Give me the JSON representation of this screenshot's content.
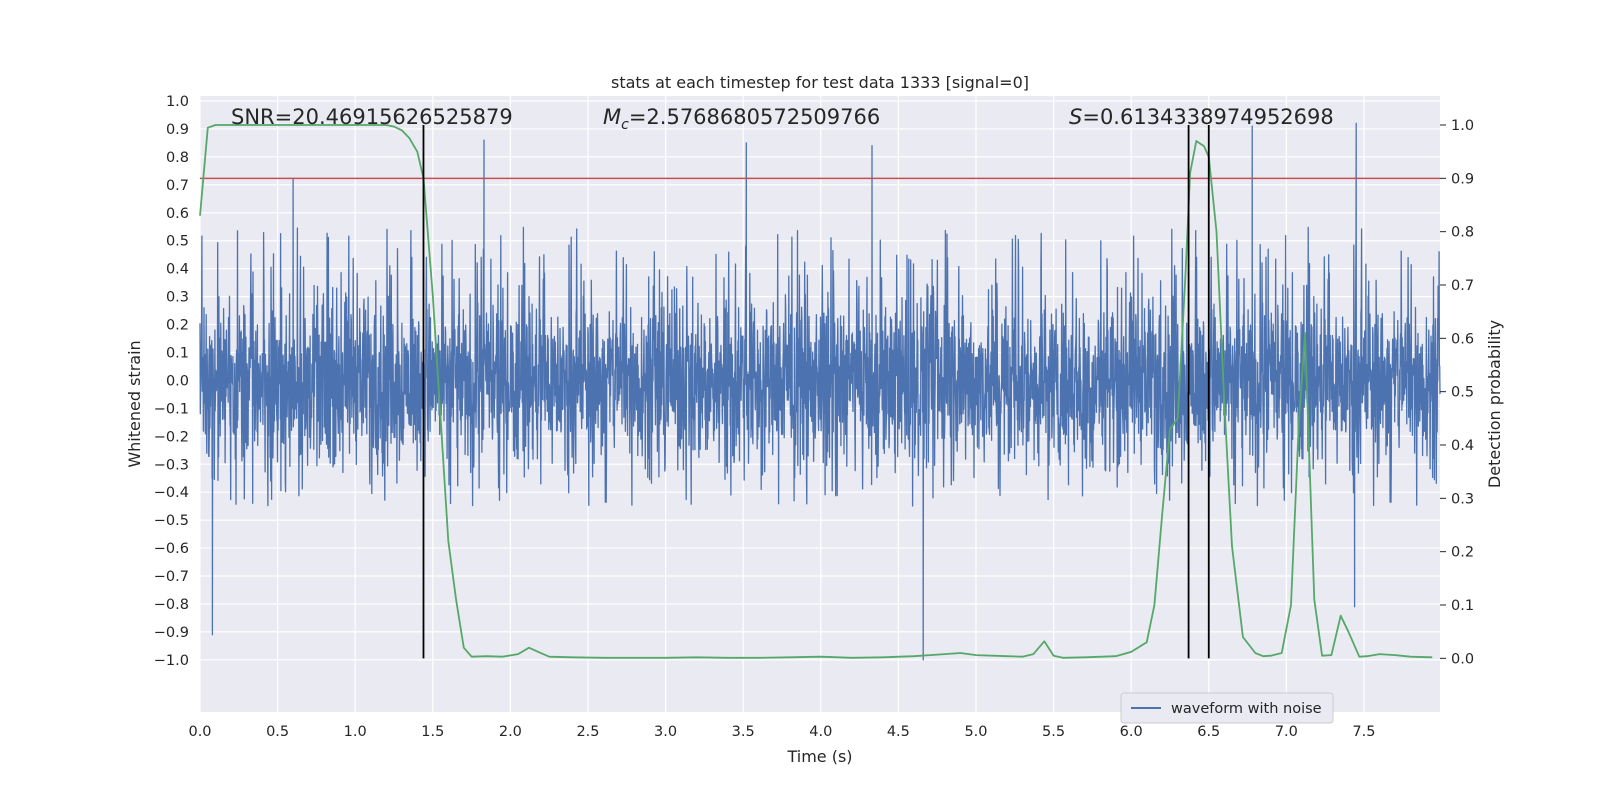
{
  "chart_data": {
    "type": "line",
    "title": "stats at each timestep for test data 1333 [signal=0]",
    "xlabel": "Time (s)",
    "ylabel_left": "Whitened strain",
    "ylabel_right": "Detection probability",
    "xlim": [
      0.0,
      7.99
    ],
    "ylim_left": [
      -1.09,
      1.0
    ],
    "ylim_right": [
      -0.05,
      1.045
    ],
    "x_ticks": [
      0.0,
      0.5,
      1.0,
      1.5,
      2.0,
      2.5,
      3.0,
      3.5,
      4.0,
      4.5,
      5.0,
      5.5,
      6.0,
      6.5,
      7.0,
      7.5
    ],
    "x_tick_labels": [
      "0.0",
      "0.5",
      "1.0",
      "1.5",
      "2.0",
      "2.5",
      "3.0",
      "3.5",
      "4.0",
      "4.5",
      "5.0",
      "5.5",
      "6.0",
      "6.5",
      "7.0",
      "7.5"
    ],
    "y_left_ticks": [
      1.0,
      0.9,
      0.8,
      0.7,
      0.6,
      0.5,
      0.4,
      0.3,
      0.2,
      0.1,
      0.0,
      -0.1,
      -0.2,
      -0.3,
      -0.4,
      -0.5,
      -0.6,
      -0.7,
      -0.8,
      -0.9,
      -1.0
    ],
    "y_left_tick_labels": [
      "1.0",
      "0.9",
      "0.8",
      "0.7",
      "0.6",
      "0.5",
      "0.4",
      "0.3",
      "0.2",
      "0.1",
      "0.0",
      "−0.1",
      "−0.2",
      "−0.3",
      "−0.4",
      "−0.5",
      "−0.6",
      "−0.7",
      "−0.8",
      "−0.9",
      "−1.0"
    ],
    "y_right_ticks": [
      1.0,
      0.9,
      0.8,
      0.7,
      0.6,
      0.5,
      0.4,
      0.3,
      0.2,
      0.1,
      0.0
    ],
    "y_right_tick_labels": [
      "1.0",
      "0.9",
      "0.8",
      "0.7",
      "0.6",
      "0.5",
      "0.4",
      "0.3",
      "0.2",
      "0.1",
      "0.0"
    ],
    "annotations": {
      "snr": "SNR=20.46915626525879",
      "mc_symbol": "M",
      "mc_subscript": "c",
      "mc_value": "=2.5768680572509766",
      "s_symbol": "S",
      "s_value": "=0.6134338974952698"
    },
    "series": [
      {
        "name": "waveform with noise",
        "axis": "left",
        "color": "#4c72b0",
        "kind": "noisy_strain",
        "typical_range": [
          -0.45,
          0.55
        ],
        "notable_extremes": [
          {
            "x": 0.08,
            "y": -0.91
          },
          {
            "x": 0.6,
            "y": 0.72
          },
          {
            "x": 1.83,
            "y": 0.86
          },
          {
            "x": 3.52,
            "y": 0.85
          },
          {
            "x": 4.33,
            "y": 0.84
          },
          {
            "x": 4.66,
            "y": -1.0
          },
          {
            "x": 6.78,
            "y": 0.91
          },
          {
            "x": 7.45,
            "y": 0.92
          },
          {
            "x": 7.44,
            "y": -0.81
          }
        ]
      },
      {
        "name": "detection probability",
        "axis": "right",
        "color": "#55a868",
        "x": [
          0.0,
          0.05,
          0.1,
          0.2,
          0.3,
          0.4,
          0.5,
          0.6,
          0.7,
          0.8,
          0.9,
          1.0,
          1.1,
          1.2,
          1.25,
          1.3,
          1.35,
          1.4,
          1.44,
          1.5,
          1.55,
          1.6,
          1.65,
          1.7,
          1.75,
          1.85,
          1.95,
          2.05,
          2.12,
          2.18,
          2.25,
          2.4,
          2.6,
          2.8,
          3.0,
          3.2,
          3.4,
          3.6,
          3.8,
          4.0,
          4.2,
          4.4,
          4.6,
          4.8,
          4.9,
          5.0,
          5.2,
          5.3,
          5.37,
          5.44,
          5.5,
          5.56,
          5.7,
          5.9,
          6.0,
          6.1,
          6.15,
          6.2,
          6.25,
          6.3,
          6.35,
          6.38,
          6.42,
          6.47,
          6.5,
          6.55,
          6.6,
          6.65,
          6.72,
          6.8,
          6.85,
          6.9,
          6.97,
          7.03,
          7.08,
          7.12,
          7.18,
          7.23,
          7.29,
          7.35,
          7.4,
          7.47,
          7.52,
          7.6,
          7.7,
          7.8,
          7.94
        ],
        "y": [
          0.83,
          0.995,
          1.0,
          1.0,
          1.0,
          1.0,
          1.0,
          1.0,
          1.0,
          1.0,
          1.0,
          1.0,
          1.0,
          1.0,
          0.997,
          0.99,
          0.975,
          0.95,
          0.9,
          0.68,
          0.45,
          0.22,
          0.11,
          0.02,
          0.003,
          0.004,
          0.003,
          0.008,
          0.02,
          0.012,
          0.003,
          0.002,
          0.001,
          0.001,
          0.001,
          0.002,
          0.001,
          0.001,
          0.002,
          0.003,
          0.001,
          0.002,
          0.004,
          0.008,
          0.01,
          0.006,
          0.004,
          0.003,
          0.008,
          0.032,
          0.005,
          0.001,
          0.002,
          0.004,
          0.012,
          0.03,
          0.1,
          0.27,
          0.43,
          0.45,
          0.72,
          0.91,
          0.97,
          0.96,
          0.94,
          0.8,
          0.48,
          0.21,
          0.04,
          0.01,
          0.004,
          0.005,
          0.01,
          0.1,
          0.44,
          0.61,
          0.11,
          0.005,
          0.006,
          0.08,
          0.05,
          0.003,
          0.004,
          0.008,
          0.006,
          0.003,
          0.002
        ]
      }
    ],
    "threshold": {
      "axis": "right",
      "value": 0.9,
      "color": "#c44e52"
    },
    "vertical_lines": [
      1.44,
      6.37,
      6.5
    ],
    "legend": {
      "entries": [
        "waveform with noise"
      ],
      "location": "lower-right"
    }
  }
}
